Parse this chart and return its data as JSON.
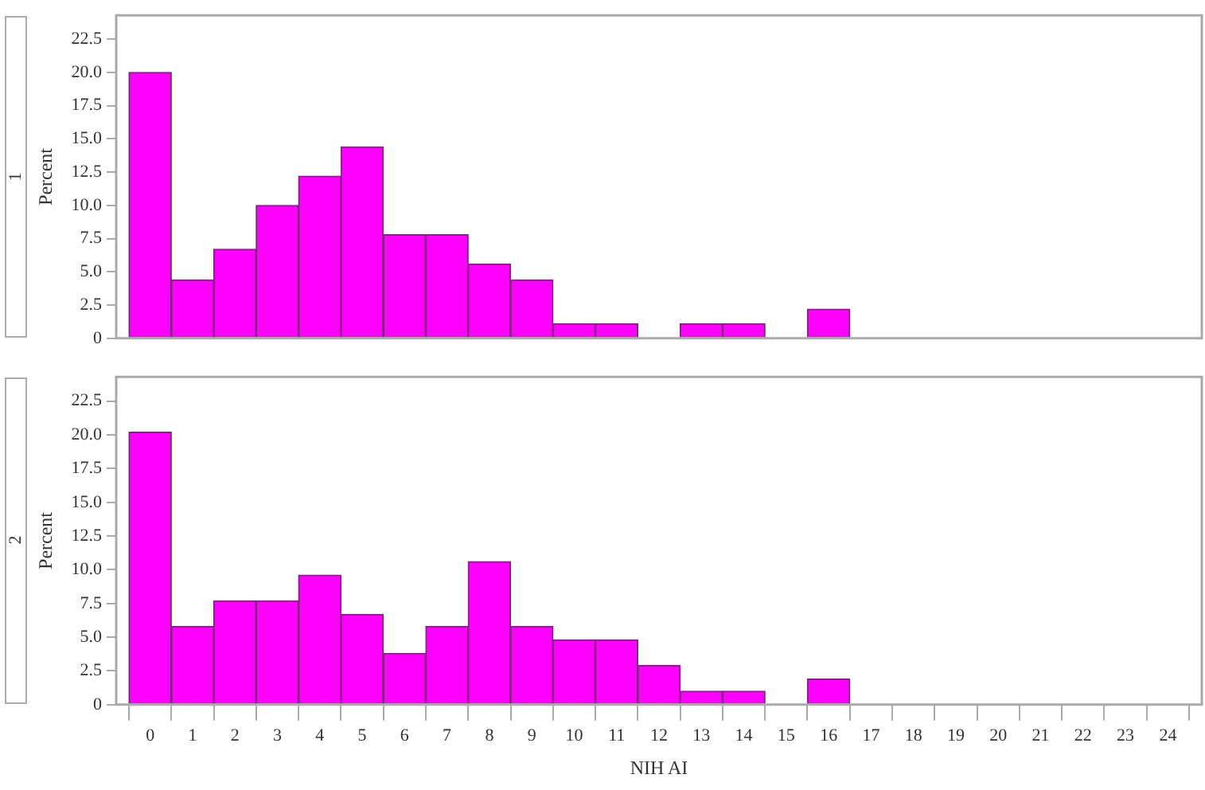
{
  "chart_data": [
    {
      "type": "histogram",
      "title": "1",
      "ylabel": "Percent",
      "color": "#ff00ff",
      "bins": [
        -0.5,
        0.5,
        1.5,
        2.5,
        3.5,
        4.5,
        5.5,
        6.5,
        7.5,
        8.5,
        9.5,
        10.5,
        11.5,
        12.5,
        13.5,
        14.5,
        15.5,
        16.5
      ],
      "values": [
        20.0,
        4.4,
        6.7,
        10.0,
        12.2,
        14.4,
        7.8,
        7.8,
        5.6,
        4.4,
        1.1,
        1.1,
        0,
        1.1,
        1.1,
        0,
        2.2
      ],
      "xlim": [
        -0.8,
        24.8
      ],
      "ylim": [
        0,
        24.3
      ],
      "yticks": [
        0,
        {
          "value": 2.5,
          "label": "2.5"
        },
        {
          "value": 5,
          "label": "5.0"
        },
        {
          "value": 7.5,
          "label": "7.5"
        },
        {
          "value": 10,
          "label": "10.0"
        },
        {
          "value": 12.5,
          "label": "12.5"
        },
        {
          "value": 15,
          "label": "15.0"
        },
        {
          "value": 17.5,
          "label": "17.5"
        },
        {
          "value": 20,
          "label": "20.0"
        },
        {
          "value": 22.5,
          "label": "22.5"
        }
      ],
      "tick_labels": "y",
      "grid": false,
      "legend": false
    },
    {
      "type": "histogram",
      "title": "2",
      "xlabel": "NIH AI",
      "ylabel": "Percent",
      "color": "#ff00ff",
      "bins": [
        -0.5,
        0.5,
        1.5,
        2.5,
        3.5,
        4.5,
        5.5,
        6.5,
        7.5,
        8.5,
        9.5,
        10.5,
        11.5,
        12.5,
        13.5,
        14.5,
        15.5,
        16.5
      ],
      "values": [
        20.2,
        5.8,
        7.7,
        7.7,
        9.6,
        6.7,
        3.8,
        5.8,
        10.6,
        5.8,
        4.8,
        4.8,
        2.9,
        1.0,
        1.0,
        0,
        1.9
      ],
      "xlim": [
        -0.8,
        24.8
      ],
      "ylim": [
        0,
        24.3
      ],
      "xticks": [
        0,
        1,
        2,
        3,
        4,
        5,
        6,
        7,
        8,
        9,
        10,
        11,
        12,
        13,
        14,
        15,
        16,
        17,
        18,
        19,
        20,
        21,
        22,
        23,
        24
      ],
      "yticks": [
        0,
        {
          "value": 2.5,
          "label": "2.5"
        },
        {
          "value": 5,
          "label": "5.0"
        },
        {
          "value": 7.5,
          "label": "7.5"
        },
        {
          "value": 10,
          "label": "10.0"
        },
        {
          "value": 12.5,
          "label": "12.5"
        },
        {
          "value": 15,
          "label": "15.0"
        },
        {
          "value": 17.5,
          "label": "17.5"
        },
        {
          "value": 20,
          "label": "20.0"
        },
        {
          "value": 22.5,
          "label": "22.5"
        }
      ],
      "grid": false,
      "legend": false
    }
  ]
}
